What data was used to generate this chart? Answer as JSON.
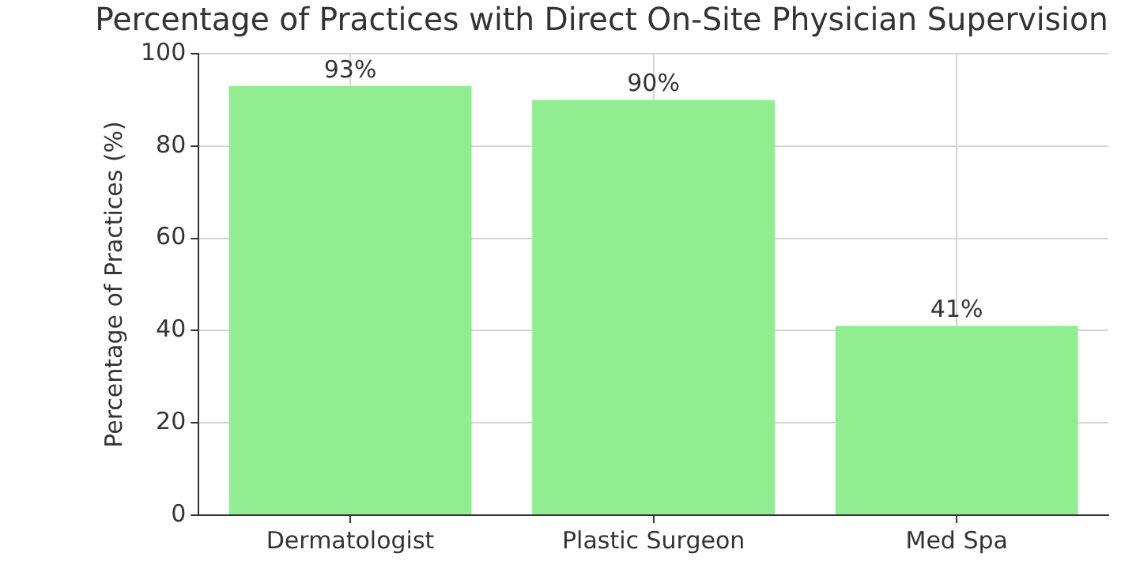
{
  "chart_data": {
    "type": "bar",
    "title": "Percentage of Practices with Direct On-Site Physician Supervision",
    "ylabel": "Percentage of Practices (%)",
    "categories": [
      "Dermatologist",
      "Plastic Surgeon",
      "Med Spa"
    ],
    "values": [
      93,
      90,
      41
    ],
    "value_labels": [
      "93%",
      "90%",
      "41%"
    ],
    "color": "#90ee90",
    "ylim": [
      0,
      100
    ],
    "yticks": [
      0,
      20,
      40,
      60,
      80,
      100
    ],
    "grid": true
  }
}
